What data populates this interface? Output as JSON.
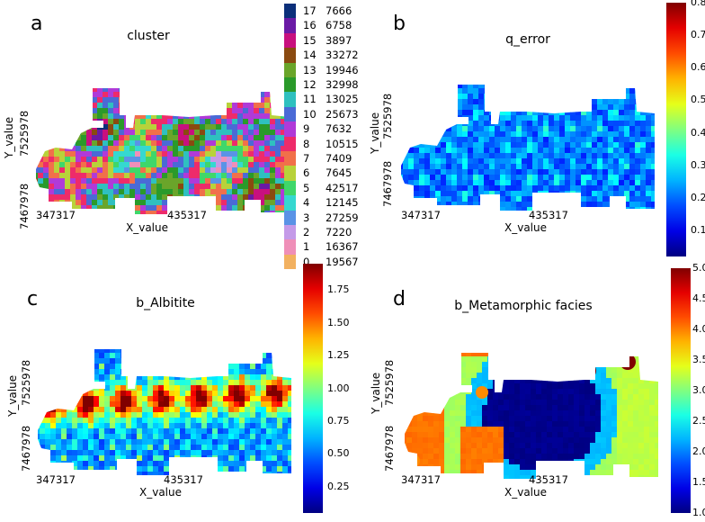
{
  "chart_data": [
    {
      "type": "heatmap",
      "panel_label": "a",
      "title": "cluster",
      "xlabel": "X_value",
      "ylabel": "Y_value",
      "x_ticks": [
        "347317",
        "435317"
      ],
      "y_ticks": [
        "7525978",
        "7467978"
      ],
      "legend": {
        "placement": "right",
        "entries": [
          {
            "cluster": "17",
            "count": "7666",
            "color": "#0b2f7a"
          },
          {
            "cluster": "16",
            "count": "6758",
            "color": "#6a1aa5"
          },
          {
            "cluster": "15",
            "count": "3897",
            "color": "#c8107e"
          },
          {
            "cluster": "14",
            "count": "33272",
            "color": "#8a4a10"
          },
          {
            "cluster": "13",
            "count": "19946",
            "color": "#6aa52a"
          },
          {
            "cluster": "12",
            "count": "32998",
            "color": "#2a9a2a"
          },
          {
            "cluster": "11",
            "count": "13025",
            "color": "#2fc0bf"
          },
          {
            "cluster": "10",
            "count": "25673",
            "color": "#4a6ad6"
          },
          {
            "cluster": "9",
            "count": "7632",
            "color": "#b03ad8"
          },
          {
            "cluster": "8",
            "count": "10515",
            "color": "#ee2b6a"
          },
          {
            "cluster": "7",
            "count": "7409",
            "color": "#f1704a"
          },
          {
            "cluster": "6",
            "count": "7645",
            "color": "#b8d23a"
          },
          {
            "cluster": "5",
            "count": "42517",
            "color": "#3fd76a"
          },
          {
            "cluster": "4",
            "count": "12145",
            "color": "#35d8d0"
          },
          {
            "cluster": "3",
            "count": "27259",
            "color": "#5a93e6"
          },
          {
            "cluster": "2",
            "count": "7220",
            "color": "#c49ae8"
          },
          {
            "cluster": "1",
            "count": "16367",
            "color": "#ef8fb8"
          },
          {
            "cluster": "0",
            "count": "19567",
            "color": "#f2b160"
          }
        ]
      }
    },
    {
      "type": "heatmap",
      "panel_label": "b",
      "title": "q_error",
      "xlabel": "X_value",
      "ylabel": "Y_value",
      "x_ticks": [
        "347317",
        "435317"
      ],
      "y_ticks": [
        "7525978",
        "7467978"
      ],
      "colorbar": {
        "ticks": [
          "0.8",
          "0.7",
          "0.6",
          "0.5",
          "0.4",
          "0.3",
          "0.2",
          "0.1"
        ],
        "range": [
          0.02,
          0.8
        ],
        "colormap": "jet"
      }
    },
    {
      "type": "heatmap",
      "panel_label": "c",
      "title": "b_Albitite",
      "xlabel": "X_value",
      "ylabel": "Y_value",
      "x_ticks": [
        "347317",
        "435317"
      ],
      "y_ticks": [
        "7525978",
        "7467978"
      ],
      "colorbar": {
        "ticks": [
          "1.75",
          "1.50",
          "1.25",
          "1.00",
          "0.75",
          "0.50",
          "0.25"
        ],
        "range": [
          0.05,
          1.95
        ],
        "colormap": "jet"
      }
    },
    {
      "type": "heatmap",
      "panel_label": "d",
      "title": "b_Metamorphic facies",
      "xlabel": "X_value",
      "ylabel": "Y_value",
      "x_ticks": [
        "347317",
        "435317"
      ],
      "y_ticks": [
        "7525978",
        "7467978"
      ],
      "colorbar": {
        "ticks": [
          "5.0",
          "4.5",
          "4.0",
          "3.5",
          "3.0",
          "2.5",
          "2.0",
          "1.5",
          "1.0"
        ],
        "range": [
          1.0,
          5.0
        ],
        "colormap": "jet"
      }
    }
  ]
}
